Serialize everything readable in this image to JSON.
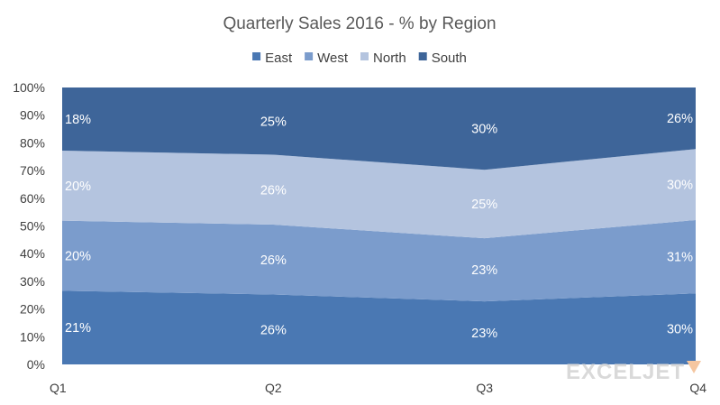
{
  "chart_data": {
    "type": "area",
    "stacked": "percent",
    "title": "Quarterly Sales 2016 -  % by Region",
    "categories": [
      "Q1",
      "Q2",
      "Q3",
      "Q4"
    ],
    "series": [
      {
        "name": "East",
        "color": "#4a78b3",
        "values": [
          21,
          26,
          23,
          30
        ],
        "labels": [
          "21%",
          "26%",
          "23%",
          "30%"
        ]
      },
      {
        "name": "West",
        "color": "#7b9ccc",
        "values": [
          20,
          26,
          23,
          31
        ],
        "labels": [
          "20%",
          "26%",
          "23%",
          "31%"
        ]
      },
      {
        "name": "North",
        "color": "#b4c4df",
        "values": [
          20,
          26,
          25,
          30
        ],
        "labels": [
          "20%",
          "26%",
          "25%",
          "30%"
        ]
      },
      {
        "name": "South",
        "color": "#3e6599",
        "values": [
          18,
          25,
          30,
          26
        ],
        "labels": [
          "18%",
          "25%",
          "30%",
          "26%"
        ]
      }
    ],
    "y_ticks": [
      "0%",
      "10%",
      "20%",
      "30%",
      "40%",
      "50%",
      "60%",
      "70%",
      "80%",
      "90%",
      "100%"
    ],
    "ylim": [
      0,
      100
    ],
    "legend_position": "top",
    "grid": false
  },
  "watermark": {
    "text": "EXCELJET",
    "color": "#d9d9d9",
    "accent": "#f5c6a0"
  }
}
